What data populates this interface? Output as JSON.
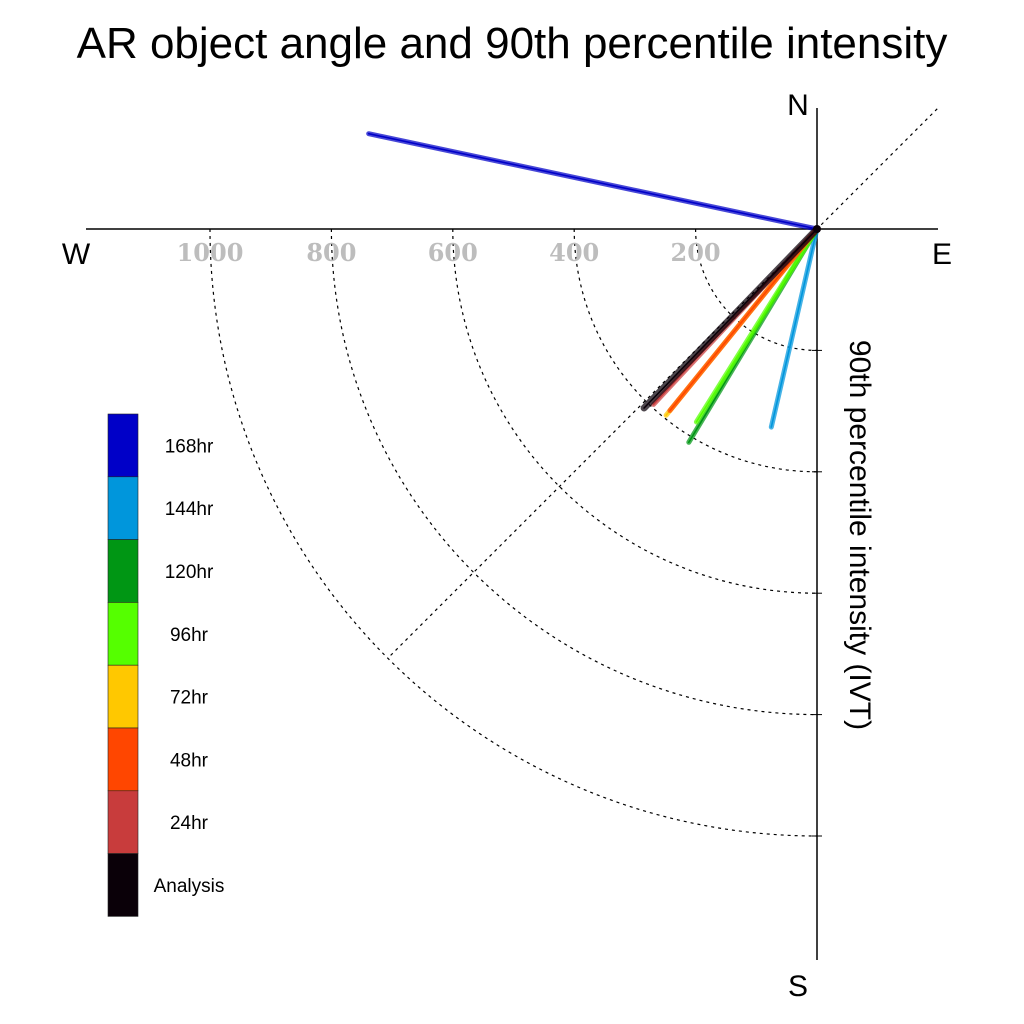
{
  "chart_data": {
    "type": "polar-vector",
    "title": "AR object angle and 90th percentile intensity",
    "radial_label": "90th percentile intensity (IVT)",
    "compass": {
      "north": "N",
      "east": "E",
      "south": "S",
      "west": "W"
    },
    "radial_ticks": [
      200,
      400,
      600,
      800,
      1000
    ],
    "radial_range": [
      0,
      1200
    ],
    "quadrant_guides": "southwest",
    "legend_position": "left",
    "series": [
      {
        "name": "168hr",
        "color": "#0000c8",
        "bearing_deg": 282,
        "intensity": 755
      },
      {
        "name": "144hr",
        "color": "#0096dc",
        "bearing_deg": 193,
        "intensity": 335
      },
      {
        "name": "120hr",
        "color": "#009614",
        "bearing_deg": 211,
        "intensity": 410
      },
      {
        "name": "96hr",
        "color": "#55ff00",
        "bearing_deg": 212,
        "intensity": 375
      },
      {
        "name": "72hr",
        "color": "#ffc800",
        "bearing_deg": 219,
        "intensity": 395
      },
      {
        "name": "48hr",
        "color": "#ff4600",
        "bearing_deg": 219,
        "intensity": 385
      },
      {
        "name": "24hr",
        "color": "#c83c3c",
        "bearing_deg": 223,
        "intensity": 395
      },
      {
        "name": "Analysis",
        "color": "#0a0008",
        "bearing_deg": 224,
        "intensity": 410
      }
    ]
  }
}
